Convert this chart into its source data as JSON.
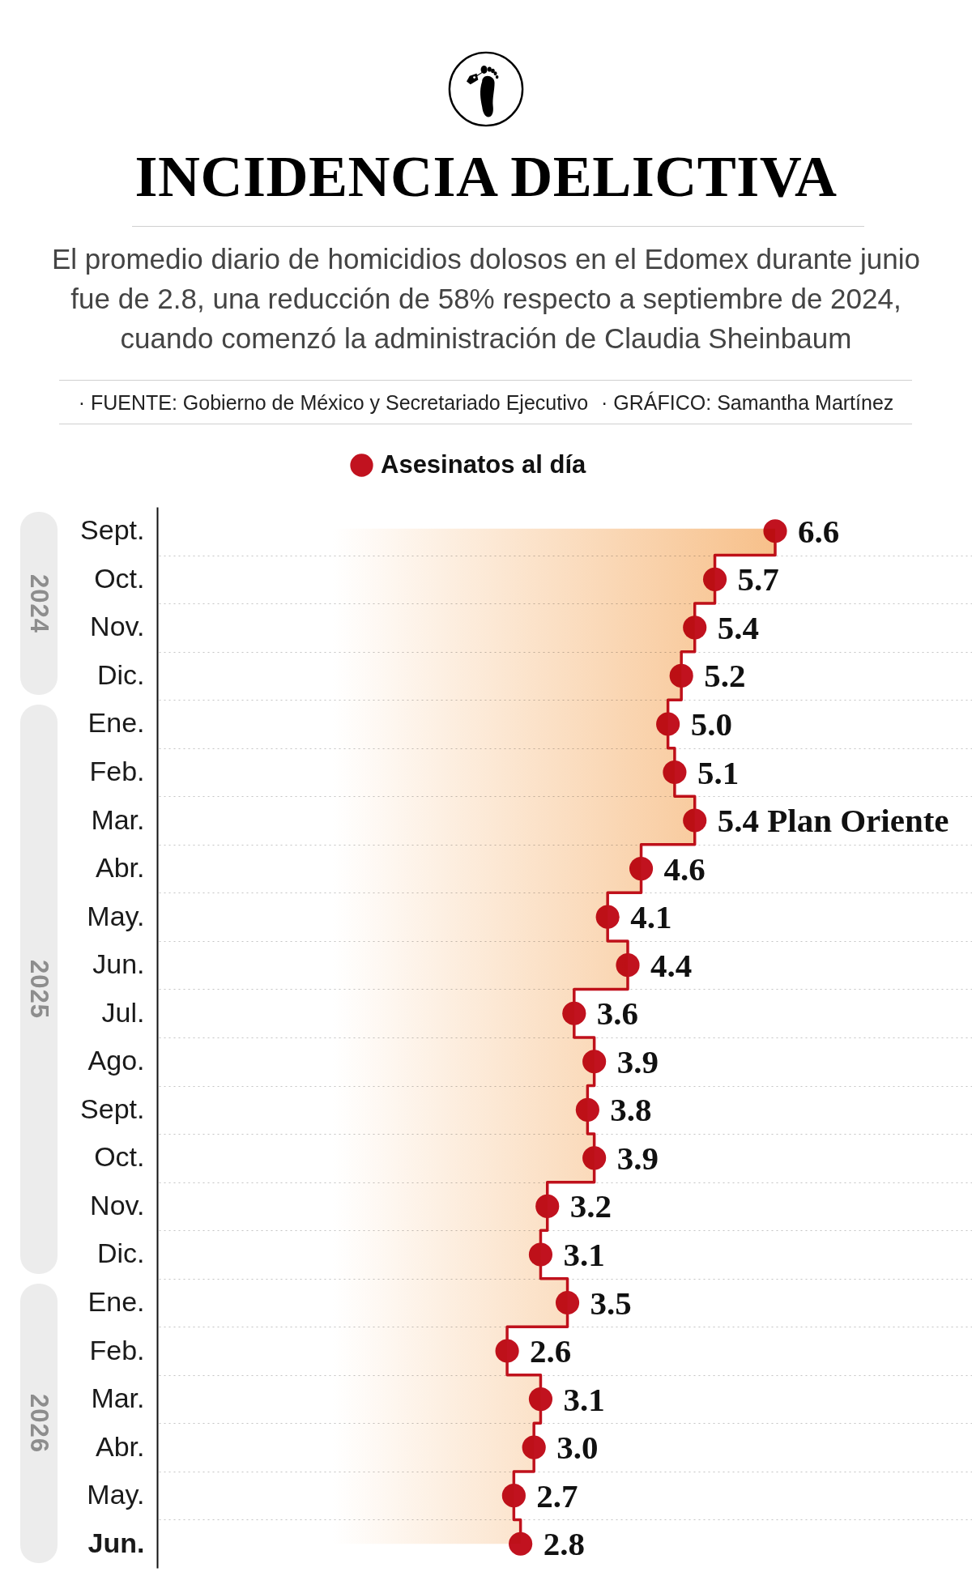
{
  "chart_data": {
    "type": "step",
    "orientation": "horizontal",
    "title": "INCIDENCIA DELICTIVA",
    "subtitle": "El promedio diario de homicidios dolosos en el Edomex durante junio fue de 2.8, una reducción de 58% respecto a septiembre de 2024, cuando comenzó la administración de Claudia Sheinbaum",
    "annotations": [
      "· FUENTE: Gobierno de México y Secretariado Ejecutivo",
      "· GRÁFICO: Samantha Martínez",
      "2024",
      "2025",
      "2026"
    ],
    "categories": [
      "Sept.",
      "Oct.",
      "Nov.",
      "Dic.",
      "Ene.",
      "Feb.",
      "Mar.",
      "Abr.",
      "May.",
      "Jun.",
      "Jul.",
      "Ago.",
      "Sept.",
      "Oct.",
      "Nov.",
      "Dic.",
      "Ene.",
      "Feb.",
      "Mar.",
      "Abr.",
      "May.",
      "Jun."
    ],
    "series": [
      {
        "type": "step",
        "name": "Asesinatos al día",
        "color": "#c1121f",
        "marker": "circle",
        "values": [
          6.6,
          5.7,
          5.4,
          5.2,
          5.0,
          5.1,
          5.4,
          4.6,
          4.1,
          4.4,
          3.6,
          3.9,
          3.8,
          3.9,
          3.2,
          3.1,
          3.5,
          2.6,
          3.1,
          3.0,
          2.7,
          2.8
        ],
        "value_labels": [
          "6.6",
          "5.7",
          "5.4",
          "5.2",
          "5.0",
          "5.1",
          "5.4 Plan Oriente",
          "4.6",
          "4.1",
          "4.4",
          "3.6",
          "3.9",
          "3.8",
          "3.9",
          "3.2",
          "3.1",
          "3.5",
          "2.6",
          "3.1",
          "3.0",
          "2.7",
          "2.8"
        ]
      },
      {
        "type": "area",
        "color": "#f7c08a",
        "values": [
          6.6,
          5.7,
          5.4,
          5.2,
          5.0,
          5.1,
          5.4,
          4.6,
          4.1,
          4.4,
          3.6,
          3.9,
          3.8,
          3.9,
          3.2,
          3.1,
          3.5,
          2.6,
          3.1,
          3.0,
          2.7,
          2.8
        ]
      }
    ],
    "legend": "top",
    "grid": "y",
    "tick_labels": "y"
  }
}
